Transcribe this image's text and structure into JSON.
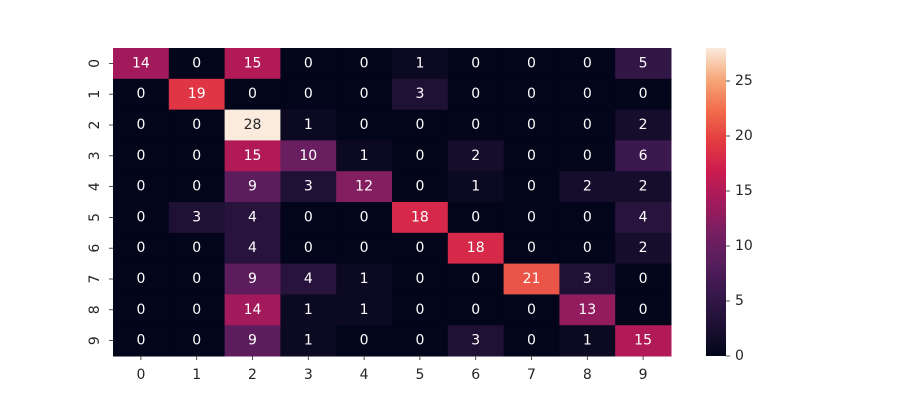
{
  "chart_data": {
    "type": "heatmap",
    "title": "",
    "xlabel": "",
    "ylabel": "",
    "x_categories": [
      "0",
      "1",
      "2",
      "3",
      "4",
      "5",
      "6",
      "7",
      "8",
      "9"
    ],
    "y_categories": [
      "0",
      "1",
      "2",
      "3",
      "4",
      "5",
      "6",
      "7",
      "8",
      "9"
    ],
    "values": [
      [
        14,
        0,
        15,
        0,
        0,
        1,
        0,
        0,
        0,
        5
      ],
      [
        0,
        19,
        0,
        0,
        0,
        3,
        0,
        0,
        0,
        0
      ],
      [
        0,
        0,
        28,
        1,
        0,
        0,
        0,
        0,
        0,
        2
      ],
      [
        0,
        0,
        15,
        10,
        1,
        0,
        2,
        0,
        0,
        6
      ],
      [
        0,
        0,
        9,
        3,
        12,
        0,
        1,
        0,
        2,
        2
      ],
      [
        0,
        3,
        4,
        0,
        0,
        18,
        0,
        0,
        0,
        4
      ],
      [
        0,
        0,
        4,
        0,
        0,
        0,
        18,
        0,
        0,
        2
      ],
      [
        0,
        0,
        9,
        4,
        1,
        0,
        0,
        21,
        3,
        0
      ],
      [
        0,
        0,
        14,
        1,
        1,
        0,
        0,
        0,
        13,
        0
      ],
      [
        0,
        0,
        9,
        1,
        0,
        0,
        3,
        0,
        1,
        15
      ]
    ],
    "annotations": true,
    "colormap": "rocket",
    "colorbar": {
      "vmin": 0,
      "vmax": 28,
      "ticks": [
        0,
        5,
        10,
        15,
        20,
        25
      ],
      "tick_labels": [
        "0",
        "5",
        "10",
        "15",
        "20",
        "25"
      ]
    },
    "grid": false,
    "legend": "none"
  },
  "colors": {
    "background": "#ffffff",
    "text": "#262626",
    "annotation_light": "#ffffff",
    "annotation_dark": "#262626"
  }
}
